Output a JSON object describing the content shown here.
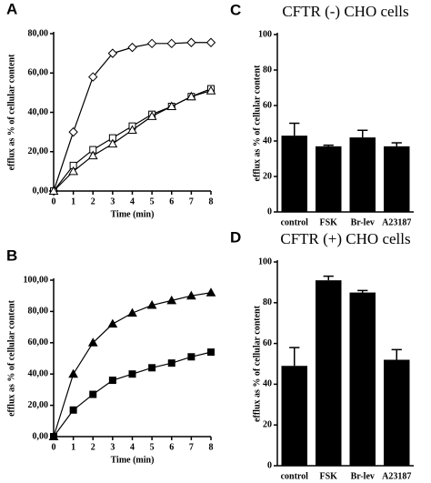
{
  "chart_data": [
    {
      "type": "line",
      "panel": "A",
      "x_label": "Time (min)",
      "y_label": "efflux as % of cellular content",
      "x": [
        0,
        1,
        2,
        3,
        4,
        5,
        6,
        7,
        8
      ],
      "xlim": [
        0,
        8
      ],
      "xticks": [
        0,
        1,
        2,
        3,
        4,
        5,
        6,
        7,
        8
      ],
      "ylim": [
        0,
        80
      ],
      "yticks": [
        {
          "value": 0,
          "label": "0,00"
        },
        {
          "value": 20,
          "label": "20,00"
        },
        {
          "value": 40,
          "label": "40,00"
        },
        {
          "value": 60,
          "label": "60,00"
        },
        {
          "value": 80,
          "label": "80,00"
        }
      ],
      "series": [
        {
          "color": "#000000",
          "marker": "diamond",
          "filled": false,
          "values": [
            0,
            30,
            58,
            70,
            73,
            75,
            75,
            75.5,
            75.5
          ]
        },
        {
          "color": "#000000",
          "marker": "square",
          "filled": false,
          "values": [
            0,
            13,
            21,
            27,
            33,
            39,
            43,
            48,
            52
          ]
        },
        {
          "color": "#000000",
          "marker": "triangle",
          "filled": false,
          "values": [
            0,
            10,
            18,
            24,
            31,
            38,
            43,
            48,
            51
          ]
        }
      ]
    },
    {
      "type": "line",
      "panel": "B",
      "x_label": "Time (min)",
      "y_label": "efflux as % of cellular content",
      "x": [
        0,
        1,
        2,
        3,
        4,
        5,
        6,
        7,
        8
      ],
      "xlim": [
        0,
        8
      ],
      "xticks": [
        0,
        1,
        2,
        3,
        4,
        5,
        6,
        7,
        8
      ],
      "ylim": [
        0,
        100
      ],
      "yticks": [
        {
          "value": 0,
          "label": "0,00"
        },
        {
          "value": 20,
          "label": "20,00"
        },
        {
          "value": 40,
          "label": "40,00"
        },
        {
          "value": 60,
          "label": "60,00"
        },
        {
          "value": 80,
          "label": "80,00"
        },
        {
          "value": 100,
          "label": "100,00"
        }
      ],
      "series": [
        {
          "color": "#000000",
          "marker": "triangle",
          "filled": true,
          "values": [
            0,
            40,
            60,
            72,
            79,
            84,
            87,
            90,
            92
          ]
        },
        {
          "color": "#000000",
          "marker": "square",
          "filled": true,
          "values": [
            0,
            17,
            27,
            36,
            40,
            44,
            47,
            51,
            54
          ]
        }
      ]
    },
    {
      "type": "bar",
      "panel": "C",
      "title": "CFTR (-) CHO cells",
      "y_label": "efflux as % of cellular content",
      "categories": [
        "control",
        "FSK",
        "Br-lev",
        "A23187"
      ],
      "values": [
        43,
        37,
        42,
        37
      ],
      "errors": [
        7,
        0.6,
        4,
        2
      ],
      "color": "#000000",
      "ylim": [
        0,
        100
      ],
      "yticks": [
        0,
        20,
        40,
        60,
        80,
        100
      ]
    },
    {
      "type": "bar",
      "panel": "D",
      "title": "CFTR (+) CHO cells",
      "y_label": "efflux as % of cellular content",
      "categories": [
        "control",
        "FSK",
        "Br-lev",
        "A23187"
      ],
      "values": [
        49,
        91,
        85,
        52
      ],
      "errors": [
        9,
        2,
        1,
        5
      ],
      "color": "#000000",
      "ylim": [
        0,
        100
      ],
      "yticks": [
        0,
        20,
        40,
        60,
        80,
        100
      ]
    }
  ]
}
